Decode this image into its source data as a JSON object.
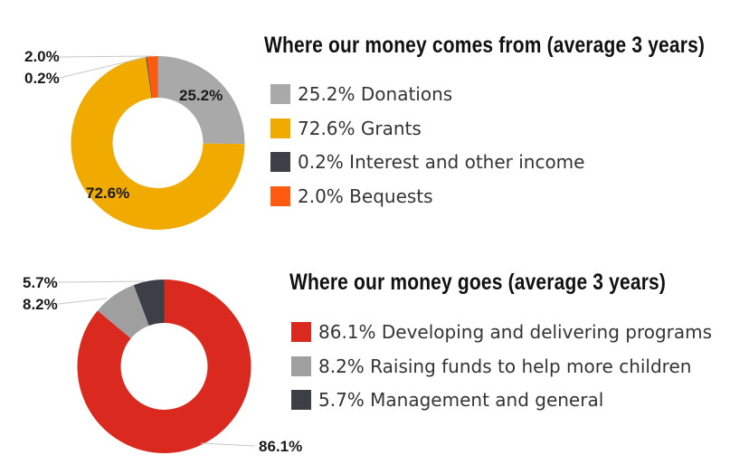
{
  "chart_data": [
    {
      "type": "pie",
      "title": "Where our money comes from (average 3 years)",
      "categories": [
        "Donations",
        "Grants",
        "Interest and other income",
        "Bequests"
      ],
      "values": [
        25.2,
        72.6,
        0.2,
        2.0
      ],
      "slice_labels": [
        "25.2%",
        "72.6%",
        "0.2%",
        "2.0%"
      ],
      "legend_entries": [
        "25.2% Donations",
        "72.6% Grants",
        "0.2% Interest and other income",
        "2.0% Bequests"
      ],
      "colors": [
        "#a9a9a9",
        "#f0aa00",
        "#3c4046",
        "#ff5a10"
      ],
      "legend_position": "right"
    },
    {
      "type": "pie",
      "title": "Where our money goes (average 3 years)",
      "categories": [
        "Developing and delivering programs",
        "Raising funds to help more children",
        "Management and general"
      ],
      "values": [
        86.1,
        8.2,
        5.7
      ],
      "slice_labels": [
        "86.1%",
        "8.2%",
        "5.7%"
      ],
      "legend_entries": [
        "86.1% Developing and delivering programs",
        "8.2% Raising funds to help more children",
        "5.7% Management and general"
      ],
      "colors": [
        "#da2a20",
        "#9f9f9f",
        "#3c4046"
      ],
      "legend_position": "right"
    }
  ]
}
